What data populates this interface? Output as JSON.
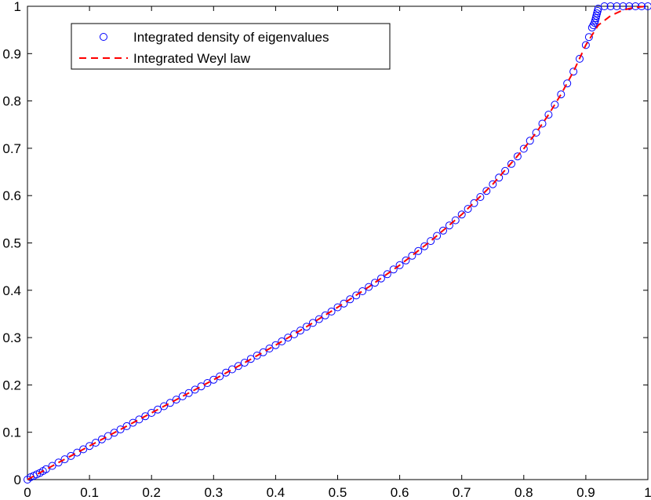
{
  "chart_data": {
    "type": "line",
    "title": "",
    "xlabel": "",
    "ylabel": "",
    "xlim": [
      0,
      1
    ],
    "ylim": [
      0,
      1
    ],
    "x_ticks": [
      "0",
      "0.1",
      "0.2",
      "0.3",
      "0.4",
      "0.5",
      "0.6",
      "0.7",
      "0.8",
      "0.9",
      "1"
    ],
    "y_ticks": [
      "0",
      "0.1",
      "0.2",
      "0.3",
      "0.4",
      "0.5",
      "0.6",
      "0.7",
      "0.8",
      "0.9",
      "1"
    ],
    "grid": false,
    "legend_position": "top-left",
    "series": [
      {
        "name": "Integrated density of eigenvalues",
        "style": "markers-circle",
        "color": "#0000ff",
        "points": [
          [
            0.0,
            0.0
          ],
          [
            0.005,
            0.005
          ],
          [
            0.01,
            0.008
          ],
          [
            0.015,
            0.011
          ],
          [
            0.02,
            0.014
          ],
          [
            0.025,
            0.018
          ],
          [
            0.03,
            0.022
          ],
          [
            0.04,
            0.029
          ],
          [
            0.05,
            0.036
          ],
          [
            0.06,
            0.043
          ],
          [
            0.07,
            0.05
          ],
          [
            0.08,
            0.057
          ],
          [
            0.09,
            0.064
          ],
          [
            0.1,
            0.071
          ],
          [
            0.11,
            0.078
          ],
          [
            0.12,
            0.085
          ],
          [
            0.13,
            0.092
          ],
          [
            0.14,
            0.099
          ],
          [
            0.15,
            0.106
          ],
          [
            0.16,
            0.113
          ],
          [
            0.17,
            0.12
          ],
          [
            0.18,
            0.127
          ],
          [
            0.19,
            0.134
          ],
          [
            0.2,
            0.141
          ],
          [
            0.21,
            0.148
          ],
          [
            0.22,
            0.155
          ],
          [
            0.23,
            0.162
          ],
          [
            0.24,
            0.169
          ],
          [
            0.25,
            0.176
          ],
          [
            0.26,
            0.183
          ],
          [
            0.27,
            0.19
          ],
          [
            0.28,
            0.197
          ],
          [
            0.29,
            0.204
          ],
          [
            0.3,
            0.211
          ],
          [
            0.31,
            0.218
          ],
          [
            0.32,
            0.226
          ],
          [
            0.33,
            0.233
          ],
          [
            0.34,
            0.24
          ],
          [
            0.35,
            0.247
          ],
          [
            0.36,
            0.255
          ],
          [
            0.37,
            0.262
          ],
          [
            0.38,
            0.269
          ],
          [
            0.39,
            0.277
          ],
          [
            0.4,
            0.284
          ],
          [
            0.41,
            0.292
          ],
          [
            0.42,
            0.3
          ],
          [
            0.43,
            0.307
          ],
          [
            0.44,
            0.315
          ],
          [
            0.45,
            0.323
          ],
          [
            0.46,
            0.331
          ],
          [
            0.47,
            0.339
          ],
          [
            0.48,
            0.347
          ],
          [
            0.49,
            0.355
          ],
          [
            0.5,
            0.364
          ],
          [
            0.51,
            0.372
          ],
          [
            0.52,
            0.381
          ],
          [
            0.53,
            0.389
          ],
          [
            0.54,
            0.398
          ],
          [
            0.55,
            0.407
          ],
          [
            0.56,
            0.416
          ],
          [
            0.57,
            0.425
          ],
          [
            0.58,
            0.434
          ],
          [
            0.59,
            0.444
          ],
          [
            0.6,
            0.453
          ],
          [
            0.61,
            0.463
          ],
          [
            0.62,
            0.473
          ],
          [
            0.63,
            0.483
          ],
          [
            0.64,
            0.493
          ],
          [
            0.65,
            0.504
          ],
          [
            0.66,
            0.515
          ],
          [
            0.67,
            0.526
          ],
          [
            0.68,
            0.537
          ],
          [
            0.69,
            0.548
          ],
          [
            0.7,
            0.56
          ],
          [
            0.71,
            0.572
          ],
          [
            0.72,
            0.584
          ],
          [
            0.73,
            0.597
          ],
          [
            0.74,
            0.61
          ],
          [
            0.75,
            0.624
          ],
          [
            0.76,
            0.638
          ],
          [
            0.77,
            0.652
          ],
          [
            0.78,
            0.667
          ],
          [
            0.79,
            0.683
          ],
          [
            0.8,
            0.699
          ],
          [
            0.81,
            0.716
          ],
          [
            0.82,
            0.733
          ],
          [
            0.83,
            0.752
          ],
          [
            0.84,
            0.771
          ],
          [
            0.85,
            0.792
          ],
          [
            0.86,
            0.814
          ],
          [
            0.87,
            0.837
          ],
          [
            0.88,
            0.862
          ],
          [
            0.89,
            0.889
          ],
          [
            0.9,
            0.918
          ],
          [
            0.905,
            0.935
          ],
          [
            0.91,
            0.955
          ],
          [
            0.912,
            0.96
          ],
          [
            0.914,
            0.965
          ],
          [
            0.915,
            0.97
          ],
          [
            0.916,
            0.975
          ],
          [
            0.917,
            0.98
          ],
          [
            0.918,
            0.985
          ],
          [
            0.919,
            0.99
          ],
          [
            0.92,
            0.995
          ],
          [
            0.93,
            1.0
          ],
          [
            0.94,
            1.0
          ],
          [
            0.95,
            1.0
          ],
          [
            0.96,
            1.0
          ],
          [
            0.97,
            1.0
          ],
          [
            0.98,
            1.0
          ],
          [
            0.99,
            1.0
          ],
          [
            1.0,
            1.0
          ]
        ]
      },
      {
        "name": "Integrated Weyl law",
        "style": "dashed-line",
        "color": "#ff0000",
        "points": [
          [
            0.0,
            0.0
          ],
          [
            0.05,
            0.036
          ],
          [
            0.1,
            0.071
          ],
          [
            0.15,
            0.106
          ],
          [
            0.2,
            0.141
          ],
          [
            0.25,
            0.176
          ],
          [
            0.3,
            0.211
          ],
          [
            0.35,
            0.247
          ],
          [
            0.4,
            0.284
          ],
          [
            0.45,
            0.323
          ],
          [
            0.5,
            0.364
          ],
          [
            0.55,
            0.407
          ],
          [
            0.6,
            0.453
          ],
          [
            0.65,
            0.504
          ],
          [
            0.7,
            0.56
          ],
          [
            0.75,
            0.624
          ],
          [
            0.8,
            0.699
          ],
          [
            0.82,
            0.733
          ],
          [
            0.84,
            0.771
          ],
          [
            0.86,
            0.814
          ],
          [
            0.88,
            0.862
          ],
          [
            0.9,
            0.918
          ],
          [
            0.92,
            0.96
          ],
          [
            0.94,
            0.98
          ],
          [
            0.96,
            0.992
          ],
          [
            0.98,
            0.998
          ],
          [
            1.0,
            1.0
          ]
        ]
      }
    ]
  },
  "legend": {
    "items": [
      {
        "label": "Integrated density of eigenvalues",
        "color": "#0000ff",
        "marker": "circle"
      },
      {
        "label": "Integrated Weyl law",
        "color": "#ff0000",
        "marker": "dashed-line"
      }
    ]
  }
}
